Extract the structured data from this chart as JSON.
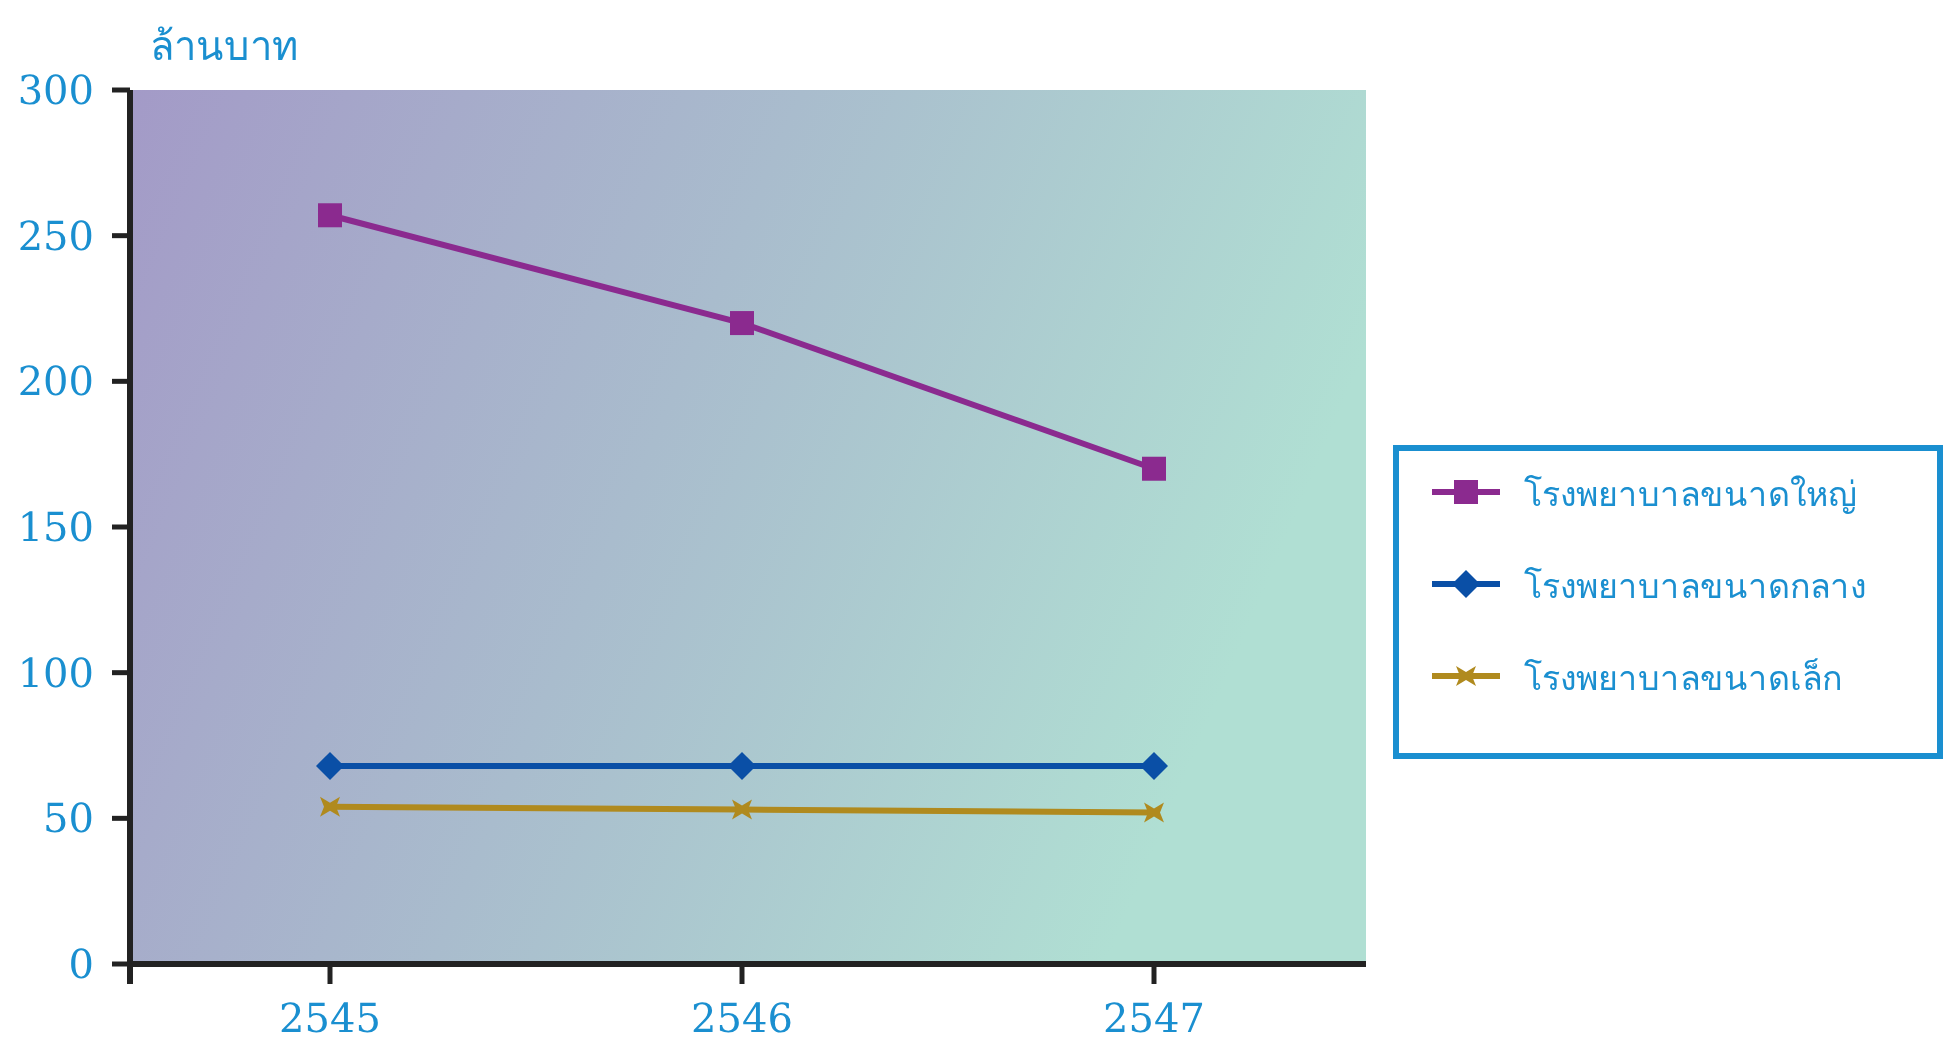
{
  "chart_data": {
    "type": "line",
    "ylabel": "ล้านบาท",
    "categories": [
      "2545",
      "2546",
      "2547"
    ],
    "series": [
      {
        "name": "โรงพยาบาลขนาดใหญ่",
        "color": "#8b2a8f",
        "marker": "square",
        "values": [
          257,
          220,
          170
        ]
      },
      {
        "name": "โรงพยาบาลขนาดกลาง",
        "color": "#0a4fa6",
        "marker": "diamond",
        "values": [
          68,
          68,
          68
        ]
      },
      {
        "name": "โรงพยาบาลขนาดเล็ก",
        "color": "#b08a1e",
        "marker": "star",
        "values": [
          54,
          53,
          52
        ]
      }
    ],
    "ylim": [
      0,
      300
    ],
    "yticks": [
      0,
      50,
      100,
      150,
      200,
      250,
      300
    ],
    "grid": false,
    "legend": "right"
  }
}
